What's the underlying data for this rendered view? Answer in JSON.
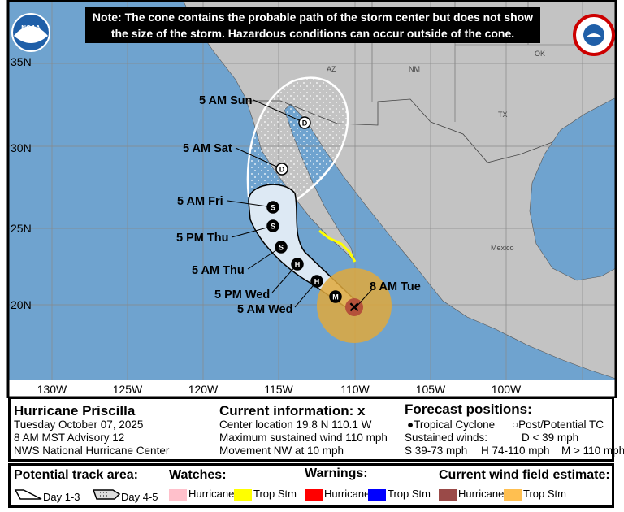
{
  "note": {
    "line1": "Note: The cone contains the probable path of the storm center but does not show",
    "line2": "the size of the storm. Hazardous conditions can occur outside of the cone."
  },
  "logos": {
    "left": "NOAA",
    "right": "NATIONAL WEATHER SERVICE"
  },
  "map": {
    "lat_labels": [
      "35N",
      "30N",
      "25N",
      "20N"
    ],
    "lon_labels": [
      "130W",
      "125W",
      "120W",
      "115W",
      "110W",
      "105W",
      "100W"
    ],
    "region_labels": {
      "az": "AZ",
      "nm": "NM",
      "tx": "TX",
      "ok": "OK",
      "mexico": "Mexico"
    },
    "current_label": "8 AM Tue",
    "forecast_points": [
      {
        "label": "5 AM Wed",
        "type": "M"
      },
      {
        "label": "5 PM Wed",
        "type": "H"
      },
      {
        "label": "5 AM Thu",
        "type": "H"
      },
      {
        "label": "5 PM Thu",
        "type": "S"
      },
      {
        "label": "5 AM Fri",
        "type": "S"
      },
      {
        "label": "5 AM Sat",
        "type": "D"
      },
      {
        "label": "5 AM Sun",
        "type": "D"
      }
    ],
    "colors": {
      "ocean": "#6fa3cf",
      "land": "#c3c3c3",
      "cone": "#dde9f4",
      "ts_wind": "#e1a93c",
      "hu_wind": "#b4513a",
      "ts_warning": "#ffff00"
    }
  },
  "info": {
    "storm_name": "Hurricane Priscilla",
    "date": "Tuesday October 07, 2025",
    "advisory": "8 AM MST Advisory 12",
    "center": "NWS National Hurricane Center",
    "current_title": "Current information:",
    "current_marker": "x",
    "location": "Center location 19.8 N 110.1 W",
    "max_wind": "Maximum sustained wind 110 mph",
    "movement": "Movement NW at 10 mph",
    "forecast_title": "Forecast positions:",
    "tropical_cyclone": "Tropical Cyclone",
    "post_potential": "Post/Potential TC",
    "sustained_winds": "Sustained winds:",
    "d_range": "D < 39 mph",
    "s_range": "S 39-73 mph",
    "h_range": "H 74-110 mph",
    "m_range": "M > 110 mph"
  },
  "legend": {
    "track_title": "Potential track area:",
    "day13": "Day 1-3",
    "day45": "Day 4-5",
    "watches_title": "Watches:",
    "warnings_title": "Warnings:",
    "wind_title": "Current wind field estimate:",
    "hurricane": "Hurricane",
    "trop_stm": "Trop Stm",
    "colors": {
      "hu_watch": "#ffc0cb",
      "ts_watch": "#ffff00",
      "hu_warning": "#ff0000",
      "ts_warning": "#0000ff",
      "hu_wind": "#9a4a48",
      "ts_wind": "#ffbf50"
    }
  }
}
